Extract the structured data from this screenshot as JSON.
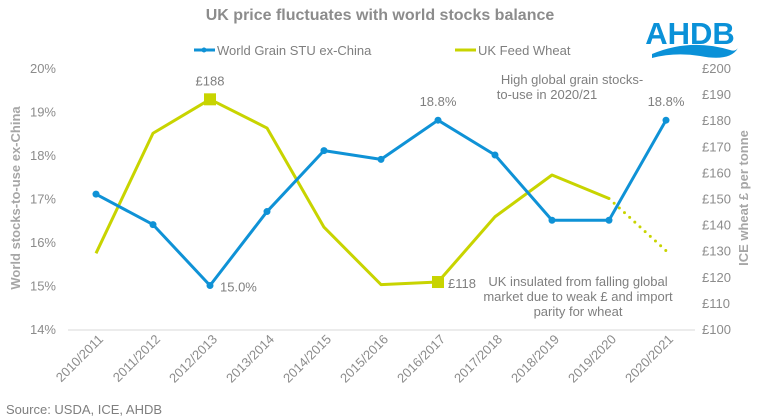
{
  "chart_data": {
    "type": "line",
    "title": "UK price fluctuates with world stocks balance",
    "categories": [
      "2010/2011",
      "2011/2012",
      "2012/2013",
      "2013/2014",
      "2014/2015",
      "2015/2016",
      "2016/2017",
      "2017/2018",
      "2018/2019",
      "2019/2020",
      "2020/2021"
    ],
    "series": [
      {
        "name": "World Grain STU ex-China",
        "axis": "left",
        "color": "#0f92d6",
        "values": [
          17.1,
          16.4,
          15.0,
          16.7,
          18.1,
          17.9,
          18.8,
          18.0,
          16.5,
          16.5,
          18.8
        ],
        "markers": true
      },
      {
        "name": "UK Feed Wheat",
        "axis": "right",
        "color": "#c8d400",
        "values": [
          129,
          175,
          188,
          177,
          139,
          117,
          118,
          143,
          159,
          150,
          null
        ],
        "projection": {
          "from_index": 9,
          "to_index": 10,
          "values": [
            150,
            130
          ],
          "style": "dotted"
        },
        "highlight_markers": [
          2,
          6
        ]
      }
    ],
    "y_left": {
      "label": "World stocks-to-use ex-China",
      "range": [
        14,
        20
      ],
      "ticks": [
        "14%",
        "15%",
        "16%",
        "17%",
        "18%",
        "19%",
        "20%"
      ]
    },
    "y_right": {
      "label": "ICE wheat £ per tonne",
      "range": [
        100,
        200
      ],
      "ticks": [
        "£100",
        "£110",
        "£120",
        "£130",
        "£140",
        "£150",
        "£160",
        "£170",
        "£180",
        "£190",
        "£200"
      ]
    },
    "grid": false,
    "legend_position": "top",
    "data_labels": [
      {
        "series": 1,
        "index": 2,
        "text": "£188",
        "position": "above"
      },
      {
        "series": 1,
        "index": 6,
        "text": "£118",
        "position": "right"
      },
      {
        "series": 0,
        "index": 2,
        "text": "15.0%",
        "position": "right"
      },
      {
        "series": 0,
        "index": 6,
        "text": "18.8%",
        "position": "above"
      },
      {
        "series": 0,
        "index": 10,
        "text": "18.8%",
        "position": "above"
      }
    ],
    "annotations": [
      {
        "lines": [
          "High global grain stocks-",
          "to-use in 2020/21"
        ]
      },
      {
        "lines": [
          "UK insulated from falling global",
          "market due to weak £ and import",
          "parity for wheat"
        ]
      }
    ]
  },
  "logo": {
    "text": "AHDB"
  },
  "source": "Source: USDA, ICE, AHDB"
}
